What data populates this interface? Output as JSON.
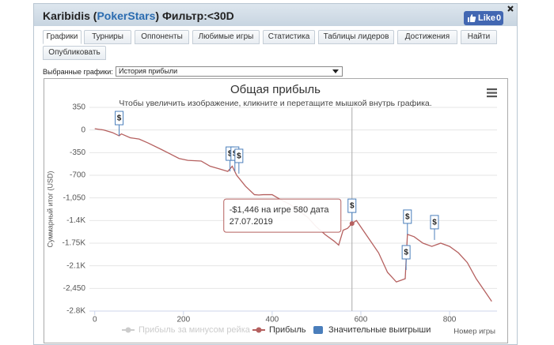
{
  "header": {
    "title_parts": [
      "Karibidis (",
      "PokerStars",
      ") Фильтр:<30D"
    ]
  },
  "like": {
    "label": "Like",
    "count": 0
  },
  "tabs": [
    "Графики",
    "Турниры",
    "Оппоненты",
    "Любимые игры",
    "Статистика",
    "Таблицы лидеров",
    "Достижения",
    "Найти",
    "Опубликовать"
  ],
  "selector": {
    "label": "Выбранные графики:",
    "value": "История прибыли"
  },
  "chart_data": {
    "type": "line",
    "title": "Общая прибыль",
    "subtitle": "Чтобы увеличить изображение, кликните и перетащите мышкой внутрь графика.",
    "y_label": "Суммарный итог (USD)",
    "x_label": "Номер игры",
    "xlim": [
      -12,
      907
    ],
    "xticks": [
      0,
      200,
      400,
      600,
      800
    ],
    "ylim": [
      -2800,
      350
    ],
    "yticks": [
      350,
      0,
      -350,
      -700,
      {
        "value": -1050,
        "label": "-1,050"
      },
      {
        "value": -1400,
        "label": "-1.4K"
      },
      {
        "value": -1750,
        "label": "-1.75K"
      },
      {
        "value": -2100,
        "label": "-2.1K"
      },
      {
        "value": -2450,
        "label": "-2,450"
      },
      {
        "value": -2800,
        "label": "-2.8K"
      }
    ],
    "grid": true,
    "flag_label": "$",
    "series": [
      {
        "name": "Прибыль за минусом рейка",
        "color": "#cccccc",
        "visible": false,
        "x": [],
        "values": []
      },
      {
        "name": "Прибыль",
        "color": "#b5605f",
        "x": [
          0,
          20,
          40,
          55,
          60,
          80,
          100,
          120,
          150,
          170,
          190,
          210,
          240,
          260,
          280,
          300,
          310,
          320,
          340,
          360,
          370,
          380,
          400,
          420,
          440,
          460,
          480,
          500,
          520,
          540,
          550,
          560,
          570,
          580,
          590,
          600,
          620,
          640,
          660,
          680,
          700,
          705,
          720,
          740,
          760,
          780,
          800,
          820,
          840,
          860,
          880,
          895
        ],
        "values": [
          20,
          0,
          -40,
          -90,
          -60,
          -120,
          -140,
          -200,
          -300,
          -370,
          -440,
          -470,
          -480,
          -560,
          -600,
          -640,
          -560,
          -700,
          -870,
          -1000,
          -1005,
          -1000,
          -1000,
          -1080,
          -1150,
          -1250,
          -1350,
          -1500,
          -1620,
          -1720,
          -1780,
          -1550,
          -1520,
          -1446,
          -1400,
          -1500,
          -1700,
          -1900,
          -2200,
          -2350,
          -2300,
          -1615,
          -1650,
          -1750,
          -1800,
          -1750,
          -1800,
          -1900,
          -2050,
          -2300,
          -2500,
          -2650
        ]
      },
      {
        "name": "Значительные выигрыши",
        "color": "#4a7ebb",
        "type": "flags",
        "x": [
          55,
          305,
          316,
          325,
          580,
          705,
          702,
          766
        ],
        "values": [
          -90,
          -640,
          -640,
          -675,
          -1446,
          -1615,
          -2165,
          -1700
        ]
      }
    ],
    "tooltip": {
      "text": "-$1,446 на игре 580 дата",
      "date": "27.07.2019"
    },
    "crosshair": {
      "series": 1,
      "index": 33
    }
  }
}
